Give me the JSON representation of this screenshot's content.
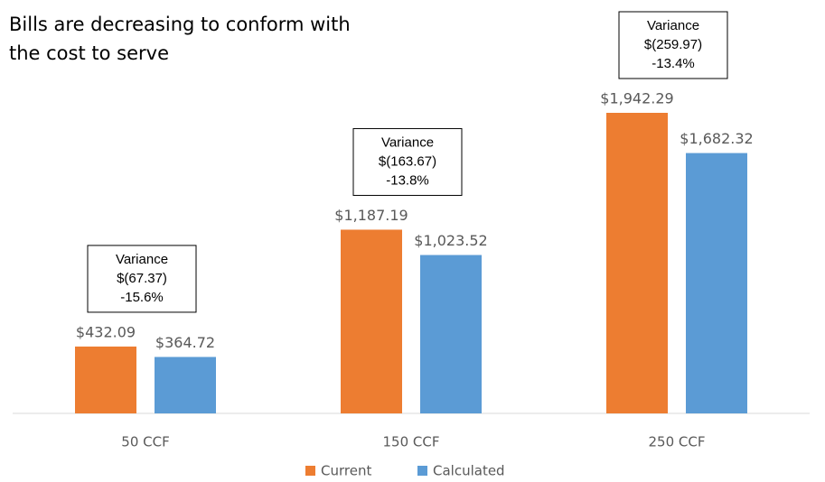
{
  "chart_data": {
    "type": "bar",
    "title": [
      "Bills are decreasing to conform with",
      "the cost to serve"
    ],
    "categories": [
      "50 CCF",
      "150 CCF",
      "250 CCF"
    ],
    "series": [
      {
        "name": "Current",
        "color": "#ed7d31",
        "values": [
          432.09,
          1187.19,
          1942.29
        ],
        "value_labels": [
          "$432.09",
          "$1,187.19",
          "$1,942.29"
        ]
      },
      {
        "name": "Calculated",
        "color": "#5b9bd5",
        "values": [
          364.72,
          1023.52,
          1682.32
        ],
        "value_labels": [
          "$364.72",
          "$1,023.52",
          "$1,682.32"
        ]
      }
    ],
    "annotations": [
      [
        "Variance",
        "$(67.37)",
        "-15.6%"
      ],
      [
        "Variance",
        "$(163.67)",
        "-13.8%"
      ],
      [
        "Variance",
        "$(259.97)",
        "-13.4%"
      ]
    ],
    "legend": "bottom"
  }
}
